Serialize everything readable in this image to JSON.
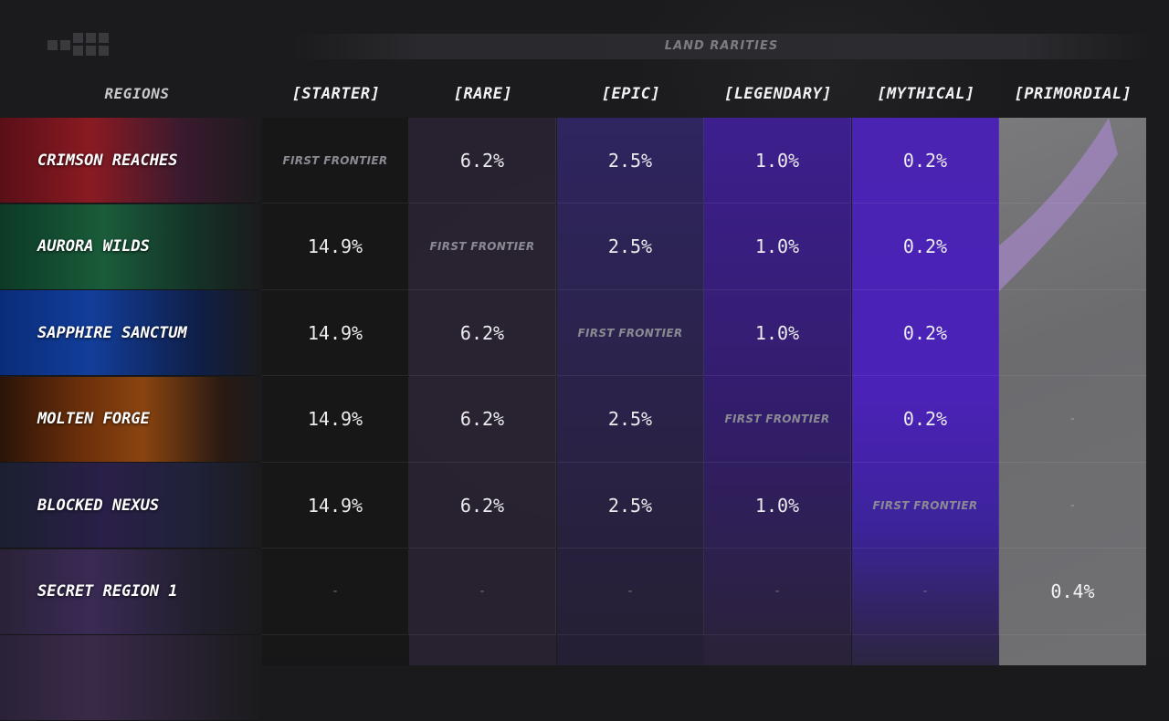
{
  "header": {
    "title": "LAND RARITIES",
    "regions_label": "REGIONS",
    "columns": [
      "[STARTER]",
      "[RARE]",
      "[EPIC]",
      "[LEGENDARY]",
      "[MYTHICAL]",
      "[PRIMORDIAL]"
    ]
  },
  "regions": [
    {
      "name": "CRIMSON REACHES",
      "values": [
        "FIRST FRONTIER",
        "6.2%",
        "2.5%",
        "1.0%",
        "0.2%",
        ""
      ]
    },
    {
      "name": "AURORA WILDS",
      "values": [
        "14.9%",
        "FIRST FRONTIER",
        "2.5%",
        "1.0%",
        "0.2%",
        ""
      ]
    },
    {
      "name": "SAPPHIRE SANCTUM",
      "values": [
        "14.9%",
        "6.2%",
        "FIRST FRONTIER",
        "1.0%",
        "0.2%",
        ""
      ]
    },
    {
      "name": "MOLTEN FORGE",
      "values": [
        "14.9%",
        "6.2%",
        "2.5%",
        "FIRST FRONTIER",
        "0.2%",
        "-"
      ]
    },
    {
      "name": "BLOCKED NEXUS",
      "values": [
        "14.9%",
        "6.2%",
        "2.5%",
        "1.0%",
        "FIRST FRONTIER",
        "-"
      ]
    },
    {
      "name": "SECRET REGION 1",
      "values": [
        "-",
        "-",
        "-",
        "-",
        "-",
        "0.4%"
      ]
    }
  ],
  "colors": {
    "starter": "#1f1f22",
    "rare": "#2a2433",
    "epic": "#2d2452",
    "legendary": "#3b1f86",
    "mythical": "#4a23b0",
    "primordial": "#737376"
  }
}
